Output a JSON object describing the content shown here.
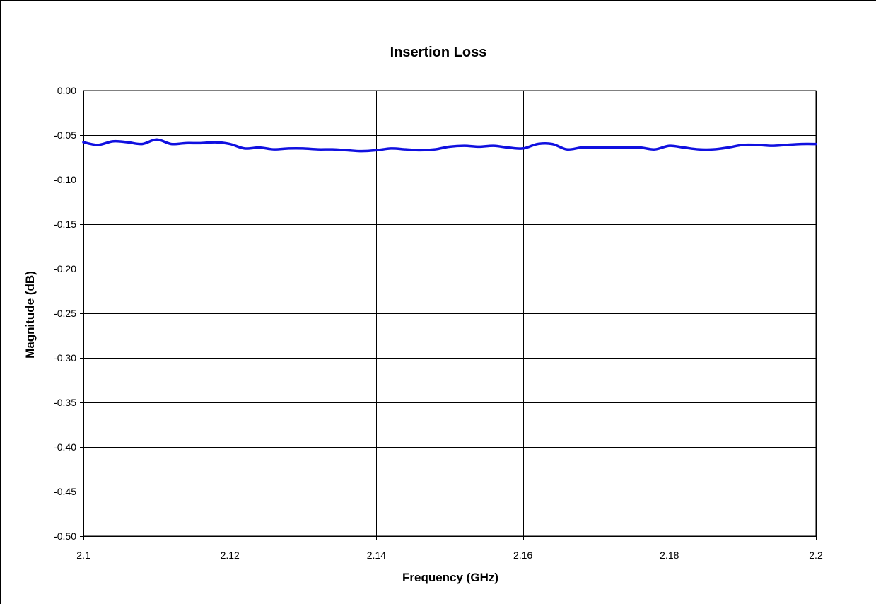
{
  "chart_data": {
    "type": "line",
    "title": "Insertion Loss",
    "xlabel": "Frequency (GHz)",
    "ylabel": "Magnitude (dB)",
    "xlim": [
      2.1,
      2.2
    ],
    "ylim": [
      -0.5,
      0.0
    ],
    "x_ticks": [
      "2.1",
      "2.12",
      "2.14",
      "2.16",
      "2.18",
      "2.2"
    ],
    "x_tick_values": [
      2.1,
      2.12,
      2.14,
      2.16,
      2.18,
      2.2
    ],
    "y_ticks": [
      "0.00",
      "-0.05",
      "-0.10",
      "-0.15",
      "-0.20",
      "-0.25",
      "-0.30",
      "-0.35",
      "-0.40",
      "-0.45",
      "-0.50"
    ],
    "y_tick_values": [
      0.0,
      -0.05,
      -0.1,
      -0.15,
      -0.2,
      -0.25,
      -0.3,
      -0.35,
      -0.4,
      -0.45,
      -0.5
    ],
    "grid": true,
    "legend": "none",
    "series": [
      {
        "color": "#1010e0",
        "x": [
          2.1,
          2.102,
          2.104,
          2.106,
          2.108,
          2.11,
          2.112,
          2.114,
          2.116,
          2.118,
          2.12,
          2.122,
          2.124,
          2.126,
          2.128,
          2.13,
          2.132,
          2.134,
          2.136,
          2.138,
          2.14,
          2.142,
          2.144,
          2.146,
          2.148,
          2.15,
          2.152,
          2.154,
          2.156,
          2.158,
          2.16,
          2.162,
          2.164,
          2.166,
          2.168,
          2.17,
          2.172,
          2.174,
          2.176,
          2.178,
          2.18,
          2.182,
          2.184,
          2.186,
          2.188,
          2.19,
          2.192,
          2.194,
          2.196,
          2.198,
          2.2
        ],
        "values": [
          -0.058,
          -0.061,
          -0.057,
          -0.058,
          -0.06,
          -0.055,
          -0.06,
          -0.059,
          -0.059,
          -0.058,
          -0.06,
          -0.065,
          -0.064,
          -0.066,
          -0.065,
          -0.065,
          -0.066,
          -0.066,
          -0.067,
          -0.068,
          -0.067,
          -0.065,
          -0.066,
          -0.067,
          -0.066,
          -0.063,
          -0.062,
          -0.063,
          -0.062,
          -0.064,
          -0.065,
          -0.06,
          -0.06,
          -0.066,
          -0.064,
          -0.064,
          -0.064,
          -0.064,
          -0.064,
          -0.066,
          -0.062,
          -0.064,
          -0.066,
          -0.066,
          -0.064,
          -0.061,
          -0.061,
          -0.062,
          -0.061,
          -0.06,
          -0.06
        ]
      }
    ]
  }
}
